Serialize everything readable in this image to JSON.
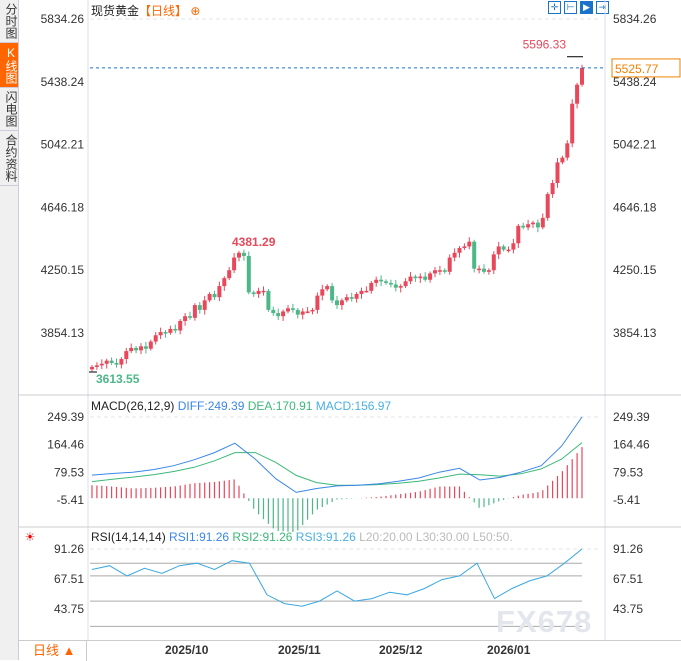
{
  "sidebar": {
    "tabs": [
      {
        "label": "分时图",
        "active": false
      },
      {
        "label": "K线图",
        "active": true
      },
      {
        "label": "闪电图",
        "active": false
      },
      {
        "label": "合约资料",
        "active": false
      }
    ]
  },
  "header": {
    "title": "现货黄金",
    "period": "【日线】",
    "zoom_icon": "zoom-in-icon",
    "tools": [
      "crosshair-icon",
      "range-icon",
      "play-icon",
      "jump-end-icon"
    ]
  },
  "colors": {
    "up": "#e8485a",
    "down": "#4cb787",
    "diff": "#3a86e8",
    "dea": "#3cb878",
    "last": "#f08000",
    "grid": "#dddddd"
  },
  "chart_data": [
    {
      "type": "candlestick",
      "title": "现货黄金",
      "ylim": [
        3700,
        5900
      ],
      "yticks": [
        "5834.26",
        "5438.24",
        "5042.21",
        "4646.18",
        "4250.15",
        "3854.13"
      ],
      "xticks": [
        "2025/10",
        "2025/11",
        "2025/12",
        "2026/01"
      ],
      "closes": [
        3640,
        3650,
        3660,
        3680,
        3665,
        3655,
        3690,
        3740,
        3760,
        3745,
        3770,
        3755,
        3800,
        3840,
        3860,
        3855,
        3880,
        3870,
        3930,
        3960,
        3950,
        4030,
        4000,
        4060,
        4100,
        4080,
        4150,
        4200,
        4250,
        4330,
        4360,
        4340,
        4110,
        4100,
        4120,
        4120,
        4000,
        3980,
        3960,
        3990,
        4010,
        4000,
        3970,
        3990,
        3990,
        4000,
        4090,
        4130,
        4150,
        4060,
        4030,
        4060,
        4080,
        4070,
        4100,
        4120,
        4120,
        4170,
        4190,
        4180,
        4170,
        4160,
        4140,
        4150,
        4180,
        4210,
        4200,
        4210,
        4190,
        4230,
        4250,
        4250,
        4240,
        4330,
        4360,
        4390,
        4400,
        4430,
        4260,
        4260,
        4240,
        4250,
        4350,
        4400,
        4380,
        4380,
        4420,
        4530,
        4520,
        4540,
        4550,
        4520,
        4580,
        4730,
        4800,
        4930,
        4960,
        5050,
        5300,
        5420,
        5525.77
      ],
      "annotations": {
        "high": "5596.33",
        "period_high": "4381.29",
        "low": "3613.55",
        "last": "5525.77"
      }
    },
    {
      "type": "line",
      "title": "MACD(26,12,9)",
      "legend": {
        "diff": "DIFF:249.39",
        "dea": "DEA:170.91",
        "macd": "MACD:156.97"
      },
      "yticks": [
        "249.39",
        "164.46",
        "79.53",
        "-5.41"
      ],
      "diff": [
        71,
        76,
        80,
        88,
        100,
        118,
        140,
        169,
        120,
        60,
        18,
        30,
        38,
        40,
        44,
        52,
        62,
        80,
        92,
        56,
        64,
        80,
        100,
        160,
        249.39
      ],
      "dea": [
        51,
        58,
        65,
        72,
        82,
        95,
        115,
        140,
        140,
        110,
        70,
        48,
        40,
        40,
        42,
        46,
        52,
        62,
        74,
        72,
        68,
        75,
        90,
        120,
        170.91
      ]
    },
    {
      "type": "line",
      "title": "RSI(14,14,14)",
      "legend": {
        "rsi1": "RSI1:91.26",
        "rsi2": "RSI2:91.26",
        "rsi3": "RSI3:91.26",
        "l20": "L20:20.00",
        "l30": "L30:30.00",
        "l50": "L50:50."
      },
      "yticks": [
        "91.26",
        "67.51",
        "43.75"
      ],
      "levels": [
        80,
        70,
        50,
        30
      ],
      "rsi": [
        75,
        78,
        70,
        76,
        72,
        78,
        80,
        75,
        82,
        80,
        55,
        48,
        46,
        50,
        58,
        50,
        52,
        57,
        55,
        60,
        67,
        70,
        80,
        52,
        60,
        66,
        70,
        80,
        91.26
      ]
    }
  ],
  "footer": {
    "period": "日线 ▲"
  },
  "watermark": "FX678"
}
